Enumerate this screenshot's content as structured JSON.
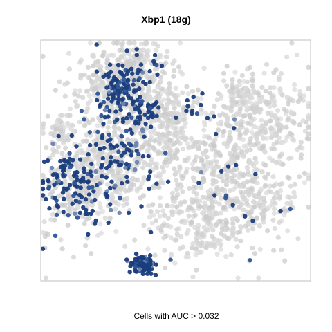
{
  "chart_data": {
    "type": "scatter",
    "title": "Xbp1 (18g)",
    "caption": "Cells with AUC > 0.032",
    "xlabel": "",
    "ylabel": "",
    "grid": false,
    "legend": "none",
    "axis_ticks": false,
    "colors": {
      "low": "#d3d3d3",
      "high": "#1a3d7c",
      "frame": "#bfbfbf"
    },
    "series": [
      {
        "color_role": "background",
        "clusters": [
          {
            "cx": 180,
            "cy": 140,
            "sx": 40,
            "sy": 38,
            "n": 260
          },
          {
            "cx": 160,
            "cy": 110,
            "sx": 28,
            "sy": 20,
            "n": 120
          },
          {
            "cx": 200,
            "cy": 90,
            "sx": 25,
            "sy": 15,
            "n": 80
          },
          {
            "cx": 130,
            "cy": 240,
            "sx": 32,
            "sy": 35,
            "n": 220
          },
          {
            "cx": 105,
            "cy": 280,
            "sx": 25,
            "sy": 35,
            "n": 140
          },
          {
            "cx": 185,
            "cy": 230,
            "sx": 30,
            "sy": 38,
            "n": 170
          },
          {
            "cx": 88,
            "cy": 192,
            "sx": 10,
            "sy": 10,
            "n": 40
          },
          {
            "cx": 310,
            "cy": 250,
            "sx": 48,
            "sy": 48,
            "n": 330
          },
          {
            "cx": 300,
            "cy": 325,
            "sx": 45,
            "sy": 30,
            "n": 200
          },
          {
            "cx": 360,
            "cy": 275,
            "sx": 35,
            "sy": 30,
            "n": 150
          },
          {
            "cx": 250,
            "cy": 195,
            "sx": 25,
            "sy": 25,
            "n": 100
          },
          {
            "cx": 380,
            "cy": 170,
            "sx": 38,
            "sy": 35,
            "n": 260
          },
          {
            "cx": 350,
            "cy": 140,
            "sx": 15,
            "sy": 15,
            "n": 60
          },
          {
            "cx": 240,
            "cy": 155,
            "sx": 20,
            "sy": 18,
            "n": 70
          }
        ]
      },
      {
        "color_role": "expressing",
        "clusters": [
          {
            "cx": 178,
            "cy": 122,
            "sx": 14,
            "sy": 12,
            "n": 70
          },
          {
            "cx": 210,
            "cy": 160,
            "sx": 12,
            "sy": 10,
            "n": 35
          },
          {
            "cx": 175,
            "cy": 215,
            "sx": 30,
            "sy": 25,
            "n": 80
          },
          {
            "cx": 120,
            "cy": 280,
            "sx": 28,
            "sy": 25,
            "n": 90
          },
          {
            "cx": 95,
            "cy": 255,
            "sx": 18,
            "sy": 25,
            "n": 45
          },
          {
            "cx": 200,
            "cy": 100,
            "sx": 25,
            "sy": 18,
            "n": 30
          },
          {
            "cx": 160,
            "cy": 150,
            "sx": 20,
            "sy": 15,
            "n": 30
          },
          {
            "cx": 290,
            "cy": 160,
            "sx": 22,
            "sy": 12,
            "n": 12
          },
          {
            "cx": 320,
            "cy": 270,
            "sx": 40,
            "sy": 45,
            "n": 20
          },
          {
            "cx": 208,
            "cy": 382,
            "sx": 9,
            "sy": 7,
            "n": 110
          }
        ]
      }
    ]
  }
}
